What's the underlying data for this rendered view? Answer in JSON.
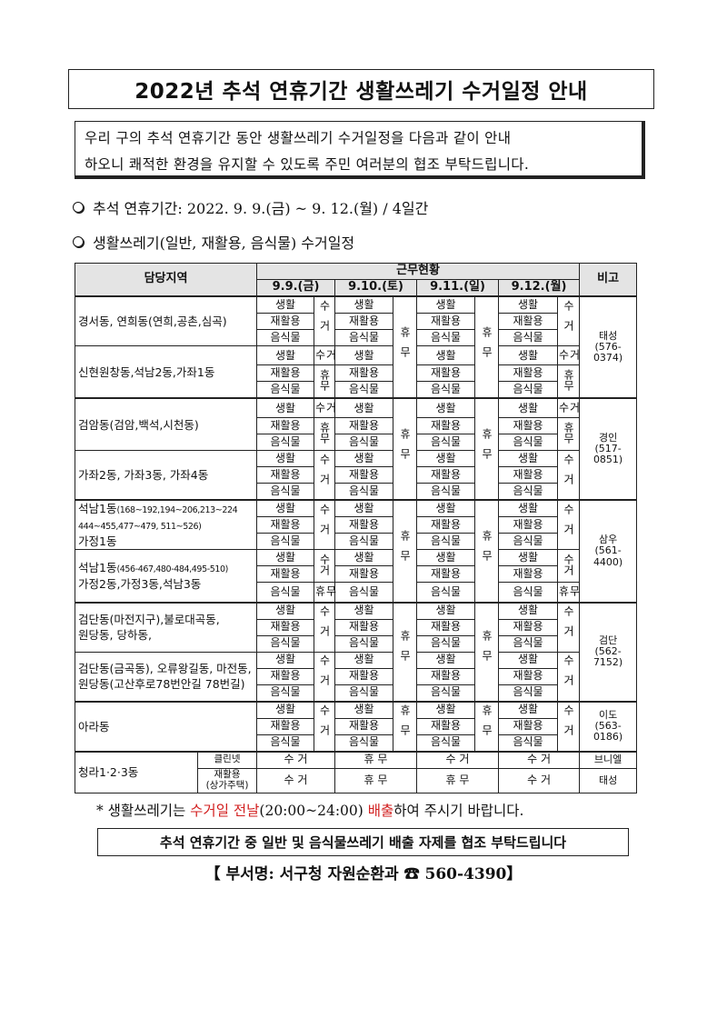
{
  "title": "2022년 추석 연휴기간 생활쓰레기 수거일정 안내",
  "intro": {
    "line1": "우리 구의 추석 연휴기간 동안 생활쓰레기 수거일정을 다음과 같이 안내",
    "line2": "하오니 쾌적한 환경을 유지할 수 있도록 주민 여러분의 협조 부탁드립니다."
  },
  "bullets": [
    "추석 연휴기간: 2022. 9. 9.(금) ~ 9. 12.(월) / 4일간",
    "생활쓰레기(일반, 재활용, 음식물) 수거일정"
  ],
  "table": {
    "header_area": "담당지역",
    "header_status": "근무현황",
    "header_note": "비고",
    "days": [
      "9.9.(금)",
      "9.10.(토)",
      "9.11.(일)",
      "9.12.(월)"
    ],
    "items": [
      "생활",
      "재활용",
      "음식물"
    ],
    "collect": "수거",
    "rest": "휴무",
    "groups": [
      {
        "note": "태성\n(576-\n0374)",
        "areas": [
          {
            "name": "경서동, 연희동(연희,공촌,심곡)",
            "sub": "",
            "name2": "",
            "split": 3
          },
          {
            "name": "신현원창동,석남2동,가좌1동",
            "sub": "",
            "name2": "",
            "split": 1
          }
        ]
      },
      {
        "note": "경인\n(517-\n0851)",
        "areas": [
          {
            "name": "검암동(검암,백석,시천동)",
            "sub": "",
            "name2": "",
            "split": 1
          },
          {
            "name": "가좌2동, 가좌3동, 가좌4동",
            "sub": "",
            "name2": "",
            "split": 3
          }
        ]
      },
      {
        "note": "삼우\n(561-\n4400)",
        "areas": [
          {
            "name": "석남1동",
            "sub": "(168~192,194~206,213~224\n444~455,477~479, 511~526)",
            "name2": "가정1동",
            "split": 3
          },
          {
            "name": "석남1동",
            "sub": "(456-467,480-484,495-510)",
            "name2": "가정2동,가정3동,석남3동",
            "split": 2
          }
        ]
      },
      {
        "note": "검단\n(562-\n7152)",
        "areas": [
          {
            "name": "검단동(마전지구),불로대곡동,",
            "sub": "",
            "name2": "원당동, 당하동,",
            "split": 3
          },
          {
            "name": "검단동(금곡동), 오류왕길동, 마전동,",
            "sub": "",
            "name2": "원당동(고산후로78번안길 78번길)",
            "split": 3
          }
        ]
      },
      {
        "note": "이도\n(563-\n0186)",
        "areas": [
          {
            "name": "아라동",
            "sub": "",
            "name2": "",
            "split": 3
          }
        ]
      }
    ],
    "cheongra": {
      "name": "청라1·2·3동",
      "rows": [
        {
          "type": "클린넷",
          "values": [
            "수 거",
            "휴 무",
            "수 거",
            "수 거"
          ],
          "note": "브니엘"
        },
        {
          "type": "재활용\n(상가주택)",
          "values": [
            "수 거",
            "휴 무",
            "휴 무",
            "수 거"
          ],
          "note": "태성"
        }
      ]
    }
  },
  "note_line": {
    "prefix": "* 생활쓰레기는 ",
    "red1": "수거일 전날",
    "mid": "(20:00~24:00) ",
    "red2": "배출",
    "suffix": "하여 주시기 바랍니다."
  },
  "notice": "추석 연휴기간 중 일반 및 음식물쓰레기 배출 자제를 협조 부탁드립니다",
  "footer": "【 부서명: 서구청 자원순환과  ☎ 560-4390】",
  "colors": {
    "accent_red": "#d21f1f",
    "header_bg": "#e4e4e4"
  }
}
